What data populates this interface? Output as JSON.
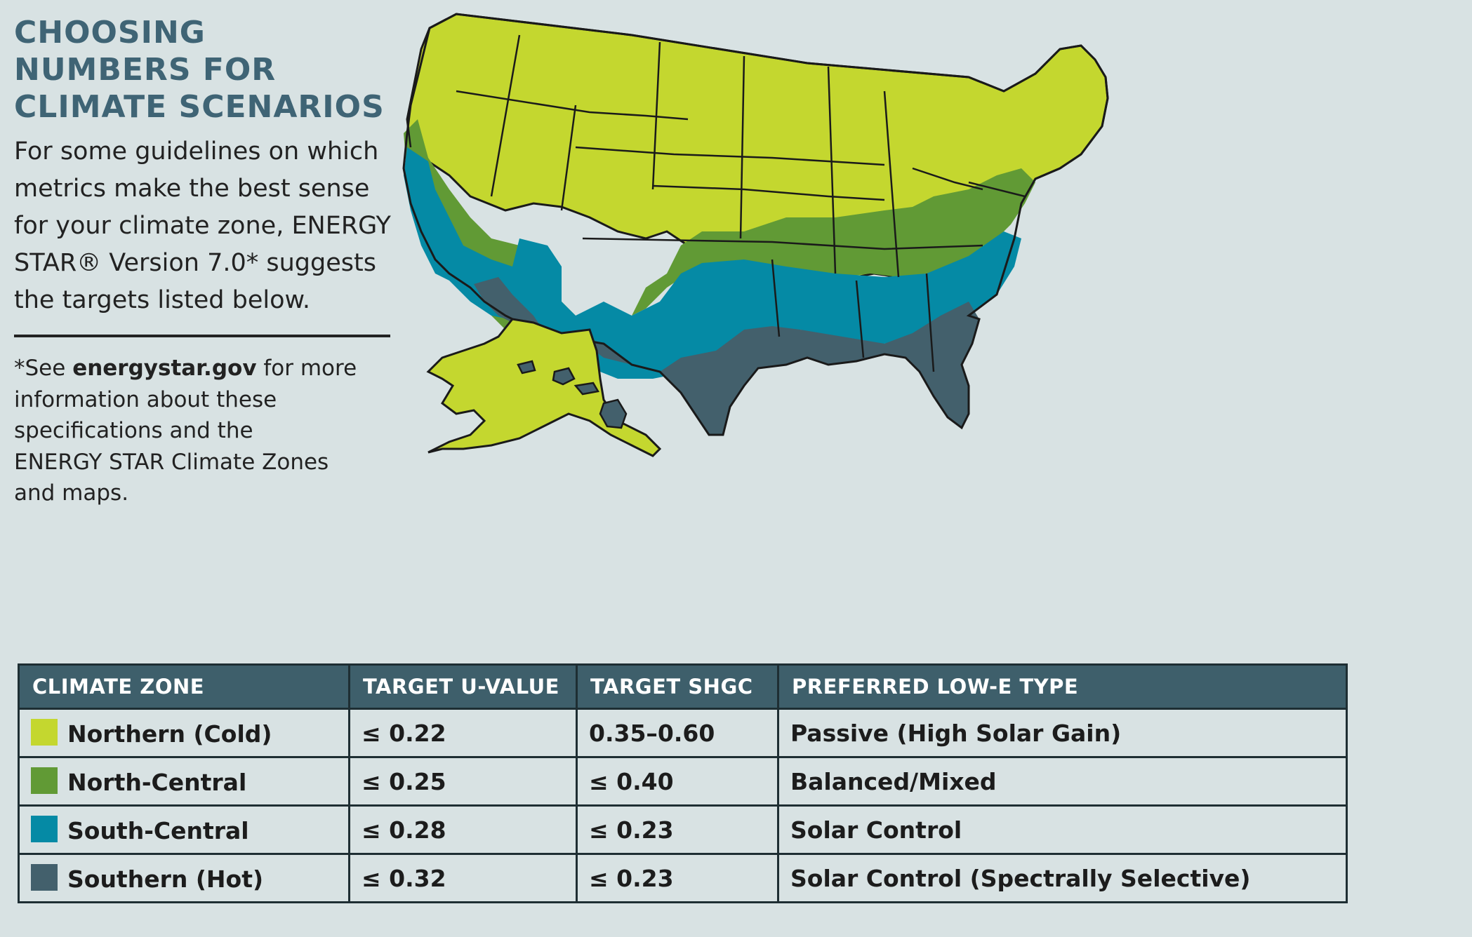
{
  "heading": [
    "CHOOSING",
    "NUMBERS FOR",
    "CLIMATE SCENARIOS"
  ],
  "intro": [
    "For some guidelines on which",
    "metrics make the best sense",
    "for your climate zone, ENERGY",
    "STAR® Version 7.0* suggests",
    "the targets listed below."
  ],
  "footnote": {
    "line1_prefix": "*See ",
    "line1_link": "energystar.gov",
    "line1_suffix": " for more",
    "lines": [
      "information about these",
      "specifications and the",
      "ENERGY STAR Climate Zones",
      "and maps."
    ]
  },
  "map": {
    "zones": [
      {
        "name": "Northern (Cold)",
        "color": "#c4d72f"
      },
      {
        "name": "North-Central",
        "color": "#619a35"
      },
      {
        "name": "South-Central",
        "color": "#058aa5"
      },
      {
        "name": "Southern (Hot)",
        "color": "#43606c"
      }
    ]
  },
  "table": {
    "headers": [
      "CLIMATE ZONE",
      "TARGET U-VALUE",
      "TARGET SHGC",
      "PREFERRED LOW-E TYPE"
    ],
    "rows": [
      {
        "zone": "Northern (Cold)",
        "color": "#c4d72f",
        "u_value": "≤ 0.22",
        "shgc": "0.35–0.60",
        "low_e": "Passive (High Solar Gain)"
      },
      {
        "zone": "North-Central",
        "color": "#619a35",
        "u_value": "≤ 0.25",
        "shgc": "≤ 0.40",
        "low_e": "Balanced/Mixed"
      },
      {
        "zone": "South-Central",
        "color": "#058aa5",
        "u_value": "≤ 0.28",
        "shgc": "≤ 0.23",
        "low_e": "Solar Control"
      },
      {
        "zone": "Southern (Hot)",
        "color": "#43606c",
        "u_value": "≤ 0.32",
        "shgc": "≤ 0.23",
        "low_e": "Solar Control (Spectrally Selective)"
      }
    ]
  }
}
